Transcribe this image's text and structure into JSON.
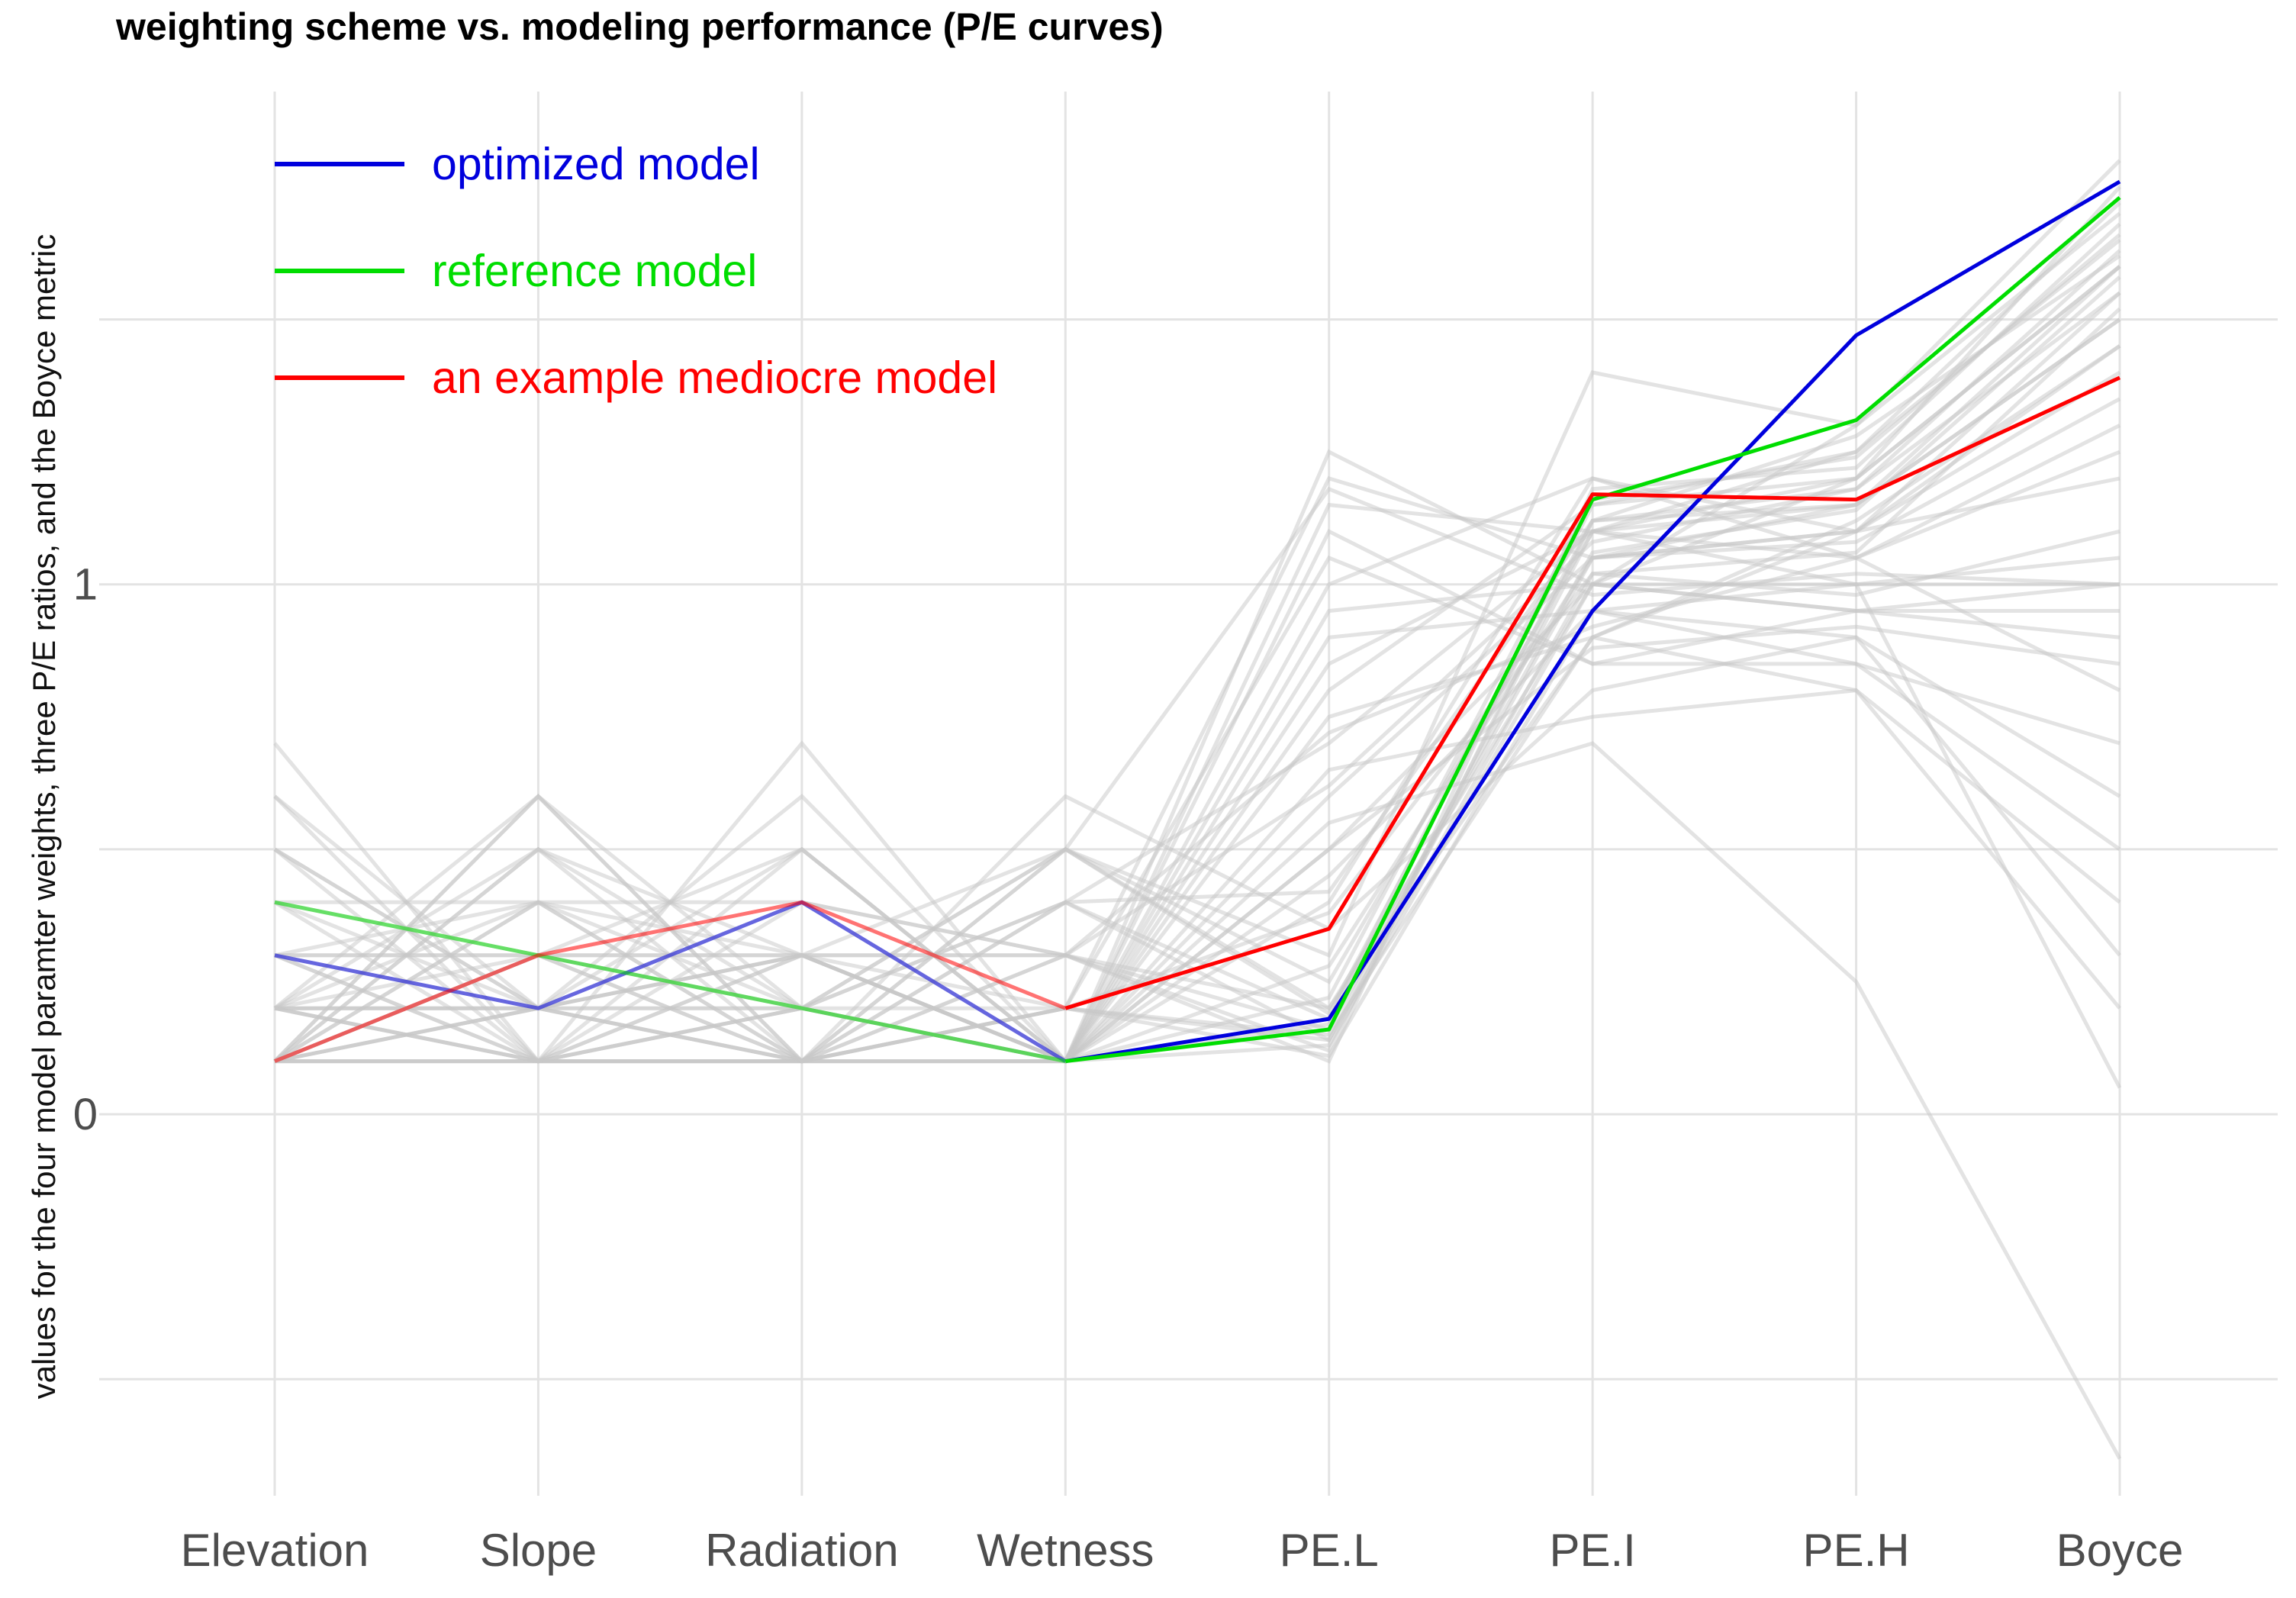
{
  "chart_data": {
    "type": "line",
    "title": "weighting scheme vs. modeling performance (P/E curves)",
    "xlabel": "",
    "ylabel": "values for the four model paramter weights, three P/E ratios, and the Boyce metric",
    "categories": [
      "Elevation",
      "Slope",
      "Radiation",
      "Wetness",
      "PE.L",
      "PE.I",
      "PE.H",
      "Boyce"
    ],
    "ylim": [
      -0.72,
      1.93
    ],
    "y_ticks": [
      {
        "value": 0,
        "label": "0"
      },
      {
        "value": 1,
        "label": "1"
      }
    ],
    "minor_gridlines": [
      -0.5,
      0.5,
      1.5
    ],
    "grid": true,
    "legend_position": "top-left",
    "series": [
      {
        "name": "optimized model",
        "color": "#0000dd",
        "values": [
          0.3,
          0.2,
          0.4,
          0.1,
          0.18,
          0.95,
          1.47,
          1.76
        ]
      },
      {
        "name": "reference model",
        "color": "#00dd00",
        "values": [
          0.4,
          0.3,
          0.2,
          0.1,
          0.16,
          1.16,
          1.31,
          1.73
        ]
      },
      {
        "name": "an example mediocre model",
        "color": "#ff0000",
        "values": [
          0.1,
          0.3,
          0.4,
          0.2,
          0.35,
          1.17,
          1.16,
          1.39
        ]
      }
    ],
    "background_series": [
      [
        0.7,
        0.1,
        0.1,
        0.1,
        1.25,
        1.0,
        0.95,
        0.9
      ],
      [
        0.6,
        0.1,
        0.1,
        0.2,
        1.2,
        1.05,
        1.1,
        1.45
      ],
      [
        0.5,
        0.2,
        0.2,
        0.1,
        1.15,
        1.1,
        1.2,
        1.6
      ],
      [
        0.5,
        0.1,
        0.3,
        0.1,
        1.1,
        0.85,
        0.95,
        1.0
      ],
      [
        0.4,
        0.3,
        0.2,
        0.1,
        1.0,
        1.2,
        1.05,
        0.8
      ],
      [
        0.3,
        0.4,
        0.2,
        0.1,
        0.95,
        1.0,
        1.3,
        1.7
      ],
      [
        0.3,
        0.3,
        0.3,
        0.1,
        0.9,
        0.95,
        0.85,
        0.5
      ],
      [
        0.2,
        0.5,
        0.2,
        0.1,
        0.8,
        1.15,
        1.25,
        1.65
      ],
      [
        0.2,
        0.2,
        0.5,
        0.1,
        0.75,
        0.9,
        1.1,
        1.2
      ],
      [
        0.2,
        0.2,
        0.2,
        0.4,
        0.7,
        1.1,
        1.0,
        1.0
      ],
      [
        0.1,
        0.6,
        0.2,
        0.1,
        0.65,
        0.75,
        0.8,
        0.2
      ],
      [
        0.1,
        0.5,
        0.3,
        0.1,
        0.6,
        1.05,
        1.15,
        1.5
      ],
      [
        0.1,
        0.4,
        0.4,
        0.1,
        0.55,
        0.7,
        0.25,
        -0.65
      ],
      [
        0.1,
        0.3,
        0.5,
        0.1,
        0.5,
        1.0,
        1.2,
        1.75
      ],
      [
        0.1,
        0.2,
        0.6,
        0.1,
        0.45,
        0.95,
        1.0,
        0.05
      ],
      [
        0.1,
        0.1,
        0.7,
        0.1,
        0.4,
        1.2,
        1.1,
        1.55
      ],
      [
        0.1,
        0.1,
        0.1,
        0.6,
        0.35,
        0.8,
        0.9,
        0.6
      ],
      [
        0.1,
        0.2,
        0.1,
        0.5,
        0.3,
        1.4,
        1.3,
        1.8
      ],
      [
        0.2,
        0.1,
        0.1,
        0.5,
        0.25,
        1.1,
        1.05,
        1.3
      ],
      [
        0.1,
        0.1,
        0.2,
        0.5,
        0.2,
        1.0,
        0.95,
        0.95
      ],
      [
        0.3,
        0.1,
        0.1,
        0.4,
        0.18,
        1.15,
        1.2,
        1.6
      ],
      [
        0.2,
        0.3,
        0.1,
        0.3,
        0.16,
        1.05,
        1.1,
        1.4
      ],
      [
        0.4,
        0.1,
        0.2,
        0.2,
        0.15,
        0.9,
        0.8,
        0.4
      ],
      [
        0.3,
        0.2,
        0.3,
        0.2,
        0.14,
        1.1,
        1.25,
        1.72
      ],
      [
        0.2,
        0.4,
        0.3,
        0.1,
        0.13,
        1.0,
        1.0,
        1.05
      ],
      [
        0.1,
        0.3,
        0.3,
        0.3,
        0.12,
        1.12,
        1.15,
        1.5
      ],
      [
        0.3,
        0.3,
        0.1,
        0.2,
        0.11,
        0.95,
        0.9,
        0.3
      ],
      [
        0.2,
        0.2,
        0.3,
        0.3,
        0.1,
        1.18,
        1.22,
        1.68
      ],
      [
        0.5,
        0.2,
        0.1,
        0.2,
        1.05,
        0.85,
        0.85,
        0.7
      ],
      [
        0.4,
        0.2,
        0.3,
        0.1,
        0.85,
        1.1,
        1.15,
        1.6
      ],
      [
        0.1,
        0.2,
        0.4,
        0.3,
        0.72,
        0.92,
        1.05,
        1.25
      ],
      [
        0.2,
        0.1,
        0.4,
        0.3,
        0.62,
        1.08,
        1.18,
        1.55
      ],
      [
        0.6,
        0.2,
        0.1,
        0.1,
        0.5,
        0.88,
        0.92,
        0.85
      ],
      [
        0.1,
        0.4,
        0.1,
        0.4,
        0.42,
        1.12,
        1.28,
        1.62
      ],
      [
        0.1,
        0.6,
        0.1,
        0.2,
        0.38,
        1.02,
        0.98,
        1.1
      ],
      [
        0.2,
        0.6,
        0.1,
        0.1,
        0.28,
        1.05,
        1.08,
        1.35
      ],
      [
        0.1,
        0.1,
        0.3,
        0.5,
        1.18,
        0.98,
        1.02,
        1.0
      ],
      [
        0.3,
        0.1,
        0.5,
        0.1,
        0.22,
        1.16,
        1.24,
        1.66
      ],
      [
        0.1,
        0.5,
        0.1,
        0.3,
        0.2,
        0.9,
        1.12,
        1.45
      ],
      [
        0.4,
        0.4,
        0.1,
        0.1,
        0.17,
        1.06,
        1.14,
        1.58
      ],
      [
        0.2,
        0.1,
        0.2,
        0.5,
        0.19,
        1.12,
        1.18,
        1.63
      ],
      [
        0.1,
        0.3,
        0.2,
        0.4,
        0.14,
        1.02,
        1.06,
        1.52
      ]
    ]
  }
}
